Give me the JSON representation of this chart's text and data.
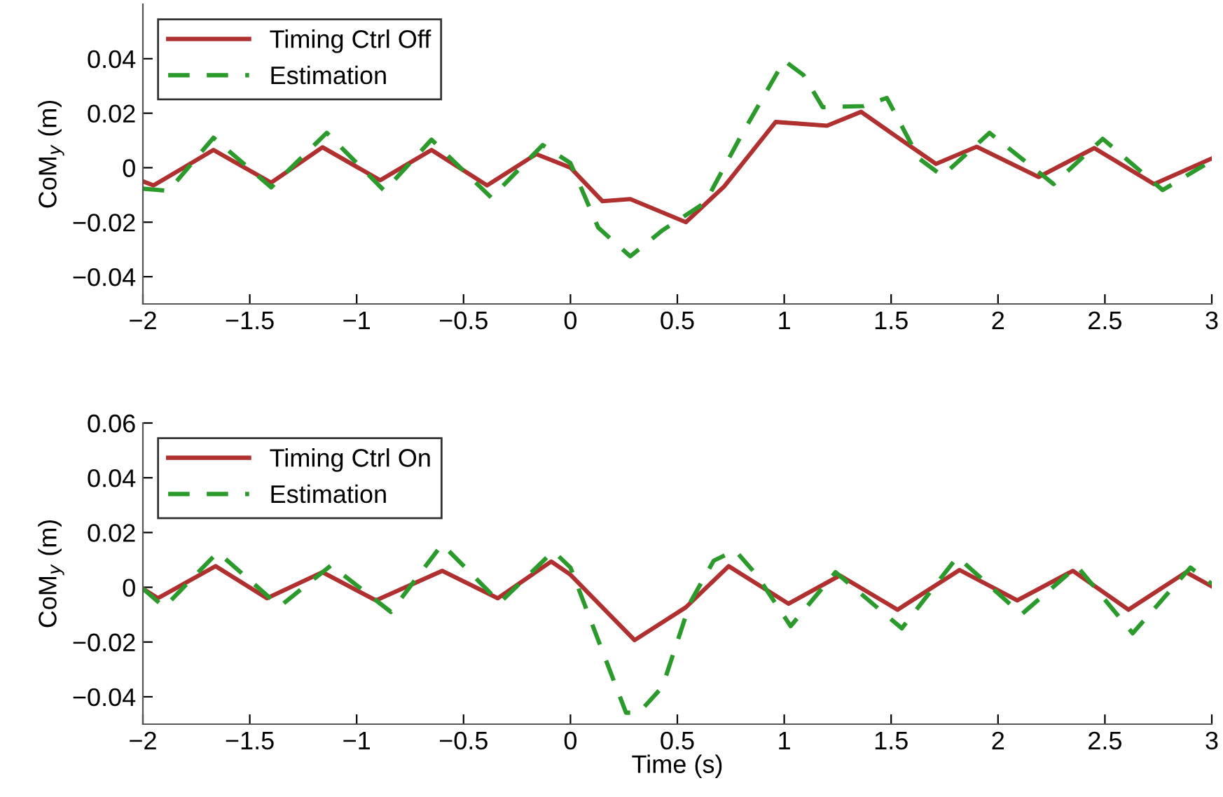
{
  "chart_data": [
    {
      "type": "line",
      "ylabel": "CoM$_{y}$ (m)",
      "xlim": [
        -2,
        3
      ],
      "ylim": [
        -0.05,
        0.06
      ],
      "xticks": [
        -2,
        -1.5,
        -1,
        -0.5,
        0,
        0.5,
        1,
        1.5,
        2,
        2.5,
        3
      ],
      "yticks": [
        -0.04,
        -0.02,
        0,
        0.02,
        0.04
      ],
      "legend": "top left",
      "grid": false,
      "series": [
        {
          "name": "Timing Ctrl Off",
          "color": "#b03030",
          "line_style": "solid",
          "x": [
            -2,
            -1.95,
            -1.67,
            -1.4,
            -1.16,
            -0.89,
            -0.65,
            -0.39,
            -0.16,
            0,
            0.15,
            0.28,
            0.54,
            0.72,
            0.96,
            1.2,
            1.36,
            1.5,
            1.71,
            1.9,
            2.19,
            2.45,
            2.73,
            3
          ],
          "values": [
            -0.005,
            -0.0065,
            0.0065,
            -0.0055,
            0.0075,
            -0.0046,
            0.0065,
            -0.0065,
            0.005,
            0,
            -0.0123,
            -0.0115,
            -0.02,
            -0.0068,
            0.0168,
            0.0154,
            0.0205,
            0.0128,
            0.0014,
            0.0077,
            -0.0034,
            0.0072,
            -0.006,
            0.0034
          ]
        },
        {
          "name": "Estimation",
          "color": "#2a9a2a",
          "line_style": "dashed",
          "x": [
            -2,
            -1.88,
            -1.67,
            -1.4,
            -1.14,
            -0.87,
            -0.65,
            -0.37,
            -0.13,
            0,
            0.13,
            0.28,
            0.43,
            0.63,
            0.8,
            1.0,
            1.09,
            1.18,
            1.37,
            1.48,
            1.63,
            1.74,
            1.96,
            2.26,
            2.49,
            2.77,
            3
          ],
          "values": [
            -0.0077,
            -0.0085,
            0.011,
            -0.0072,
            0.0128,
            -0.0085,
            0.0103,
            -0.011,
            0.0083,
            0.0017,
            -0.022,
            -0.0325,
            -0.023,
            -0.0128,
            0.012,
            0.0393,
            0.034,
            0.0222,
            0.0226,
            0.0256,
            0.0034,
            -0.003,
            0.0128,
            -0.006,
            0.0106,
            -0.0082,
            0.0026
          ]
        }
      ]
    },
    {
      "type": "line",
      "xlabel": "Time (s)",
      "ylabel": "CoM$_{y}$ (m)",
      "xlim": [
        -2,
        3
      ],
      "ylim": [
        -0.05,
        0.06
      ],
      "xticks": [
        -2,
        -1.5,
        -1,
        -0.5,
        0,
        0.5,
        1,
        1.5,
        2,
        2.5,
        3
      ],
      "yticks": [
        -0.04,
        -0.02,
        0,
        0.02,
        0.04,
        0.06
      ],
      "legend": "top left",
      "grid": false,
      "series": [
        {
          "name": "Timing Ctrl On",
          "color": "#b03030",
          "line_style": "solid",
          "x": [
            -2,
            -1.93,
            -1.66,
            -1.42,
            -1.16,
            -0.91,
            -0.6,
            -0.34,
            -0.09,
            0,
            0.17,
            0.3,
            0.54,
            0.74,
            1.02,
            1.26,
            1.53,
            1.82,
            2.09,
            2.35,
            2.61,
            2.88,
            3
          ],
          "values": [
            -0.0005,
            -0.004,
            0.0077,
            -0.004,
            0.0055,
            -0.0048,
            0.006,
            -0.004,
            0.0094,
            0.0046,
            -0.009,
            -0.0193,
            -0.0073,
            0.0077,
            -0.006,
            0.0043,
            -0.0082,
            0.0063,
            -0.0048,
            0.006,
            -0.0082,
            0.0055,
            0.0003
          ]
        },
        {
          "name": "Estimation",
          "color": "#2a9a2a",
          "line_style": "dashed",
          "x": [
            -2,
            -1.9,
            -1.65,
            -1.36,
            -1.12,
            -0.84,
            -0.6,
            -0.33,
            -0.08,
            0,
            0.13,
            0.26,
            0.32,
            0.43,
            0.56,
            0.67,
            0.77,
            0.87,
            1.03,
            1.24,
            1.55,
            1.81,
            2.11,
            2.37,
            2.63,
            2.9,
            3
          ],
          "values": [
            -0.0005,
            -0.0073,
            0.0128,
            -0.007,
            0.008,
            -0.009,
            0.0157,
            -0.0056,
            0.0132,
            0.0072,
            -0.0193,
            -0.0458,
            -0.0458,
            -0.0364,
            -0.0056,
            0.0097,
            0.0135,
            0.0046,
            -0.0142,
            0.0055,
            -0.015,
            0.0111,
            -0.0099,
            0.0077,
            -0.0168,
            0.0072,
            0.0012
          ]
        }
      ]
    }
  ]
}
